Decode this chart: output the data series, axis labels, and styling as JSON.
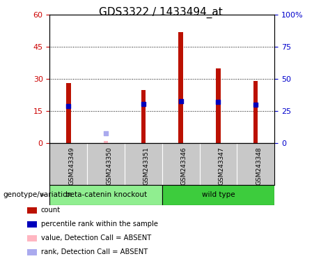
{
  "title": "GDS3322 / 1433494_at",
  "samples": [
    "GSM243349",
    "GSM243350",
    "GSM243351",
    "GSM243346",
    "GSM243347",
    "GSM243348"
  ],
  "count_values": [
    28,
    1,
    25,
    52,
    35,
    29
  ],
  "count_absent": [
    false,
    true,
    false,
    false,
    false,
    false
  ],
  "rank_values": [
    29,
    8,
    30.5,
    33,
    32,
    30
  ],
  "rank_absent": [
    false,
    true,
    false,
    false,
    false,
    false
  ],
  "ylim_left": [
    0,
    60
  ],
  "ylim_right": [
    0,
    100
  ],
  "yticks_left": [
    0,
    15,
    30,
    45,
    60
  ],
  "yticks_right": [
    0,
    25,
    50,
    75,
    100
  ],
  "ytick_labels_left": [
    "0",
    "15",
    "30",
    "45",
    "60"
  ],
  "ytick_labels_right": [
    "0",
    "25",
    "50",
    "75",
    "100%"
  ],
  "groups": [
    {
      "label": "beta-catenin knockout",
      "indices": [
        0,
        1,
        2
      ],
      "color": "#90EE90"
    },
    {
      "label": "wild type",
      "indices": [
        3,
        4,
        5
      ],
      "color": "#3DCC3D"
    }
  ],
  "genotype_label": "genotype/variation",
  "bar_color_present": "#BB1100",
  "bar_color_absent": "#FFB6C1",
  "rank_color_present": "#0000BB",
  "rank_color_absent": "#AAAAEE",
  "bar_width": 0.12,
  "rank_marker_size": 25,
  "legend_items": [
    {
      "label": "count",
      "color": "#BB1100"
    },
    {
      "label": "percentile rank within the sample",
      "color": "#0000BB"
    },
    {
      "label": "value, Detection Call = ABSENT",
      "color": "#FFB6C1"
    },
    {
      "label": "rank, Detection Call = ABSENT",
      "color": "#AAAAEE"
    }
  ],
  "grid_linestyle": "dotted",
  "label_bg": "#C8C8C8",
  "tick_fontsize": 8,
  "left_tick_color": "#CC0000",
  "right_tick_color": "#0000CC",
  "title_fontsize": 11
}
